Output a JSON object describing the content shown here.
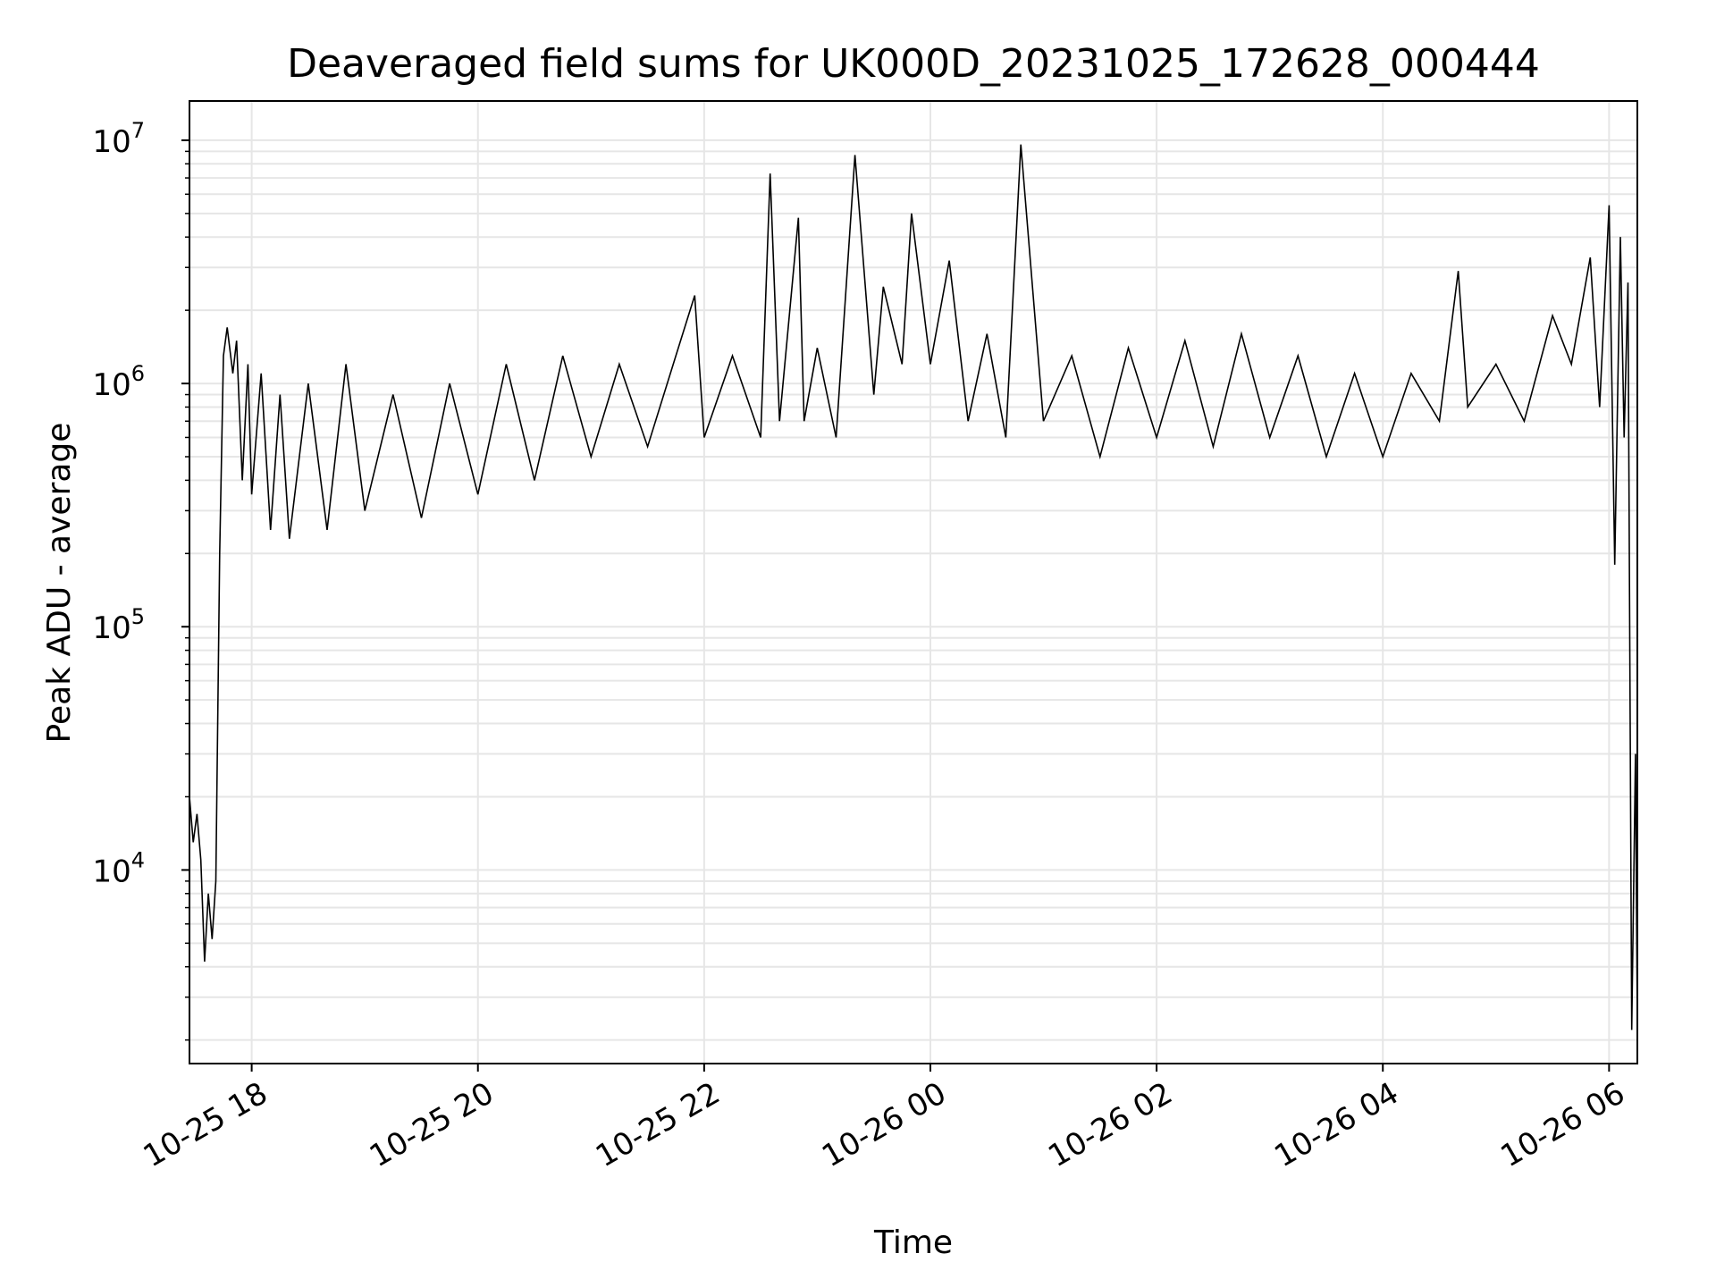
{
  "chart_data": {
    "type": "line",
    "title": "Deaveraged field sums for UK000D_20231025_172628_000444",
    "xlabel": "Time",
    "ylabel": "Peak ADU - average",
    "yscale": "log",
    "xlim": [
      "2023-10-25 17:27",
      "2023-10-26 06:15"
    ],
    "ylim": [
      1600,
      14500000
    ],
    "grid": true,
    "x_ticks": [
      {
        "label": "10-25 18",
        "value": "2023-10-25 18:00"
      },
      {
        "label": "10-25 20",
        "value": "2023-10-25 20:00"
      },
      {
        "label": "10-25 22",
        "value": "2023-10-25 22:00"
      },
      {
        "label": "10-26 00",
        "value": "2023-10-26 00:00"
      },
      {
        "label": "10-26 02",
        "value": "2023-10-26 02:00"
      },
      {
        "label": "10-26 04",
        "value": "2023-10-26 04:00"
      },
      {
        "label": "10-26 06",
        "value": "2023-10-26 06:00"
      }
    ],
    "y_ticks": [
      {
        "base": "10",
        "exp": "4",
        "value": 10000
      },
      {
        "base": "10",
        "exp": "5",
        "value": 100000
      },
      {
        "base": "10",
        "exp": "6",
        "value": 1000000
      },
      {
        "base": "10",
        "exp": "7",
        "value": 10000000
      }
    ],
    "line_color": "#000000",
    "grid_color": "#e6e6e6",
    "series": [
      {
        "x": [
          "2023-10-25 17:27",
          "2023-10-25 17:29",
          "2023-10-25 17:31",
          "2023-10-25 17:33",
          "2023-10-25 17:35",
          "2023-10-25 17:37",
          "2023-10-25 17:39",
          "2023-10-25 17:41",
          "2023-10-25 17:43",
          "2023-10-25 17:45",
          "2023-10-25 17:47",
          "2023-10-25 17:50",
          "2023-10-25 17:52",
          "2023-10-25 17:55",
          "2023-10-25 17:58",
          "2023-10-25 18:00",
          "2023-10-25 18:05",
          "2023-10-25 18:10",
          "2023-10-25 18:15",
          "2023-10-25 18:20",
          "2023-10-25 18:30",
          "2023-10-25 18:40",
          "2023-10-25 18:50",
          "2023-10-25 19:00",
          "2023-10-25 19:15",
          "2023-10-25 19:30",
          "2023-10-25 19:45",
          "2023-10-25 20:00",
          "2023-10-25 20:15",
          "2023-10-25 20:30",
          "2023-10-25 20:45",
          "2023-10-25 21:00",
          "2023-10-25 21:15",
          "2023-10-25 21:30",
          "2023-10-25 21:45",
          "2023-10-25 21:55",
          "2023-10-25 22:00",
          "2023-10-25 22:15",
          "2023-10-25 22:30",
          "2023-10-25 22:35",
          "2023-10-25 22:40",
          "2023-10-25 22:50",
          "2023-10-25 22:53",
          "2023-10-25 23:00",
          "2023-10-25 23:10",
          "2023-10-25 23:20",
          "2023-10-25 23:30",
          "2023-10-25 23:35",
          "2023-10-25 23:45",
          "2023-10-25 23:50",
          "2023-10-26 00:00",
          "2023-10-26 00:10",
          "2023-10-26 00:20",
          "2023-10-26 00:30",
          "2023-10-26 00:40",
          "2023-10-26 00:48",
          "2023-10-26 01:00",
          "2023-10-26 01:15",
          "2023-10-26 01:30",
          "2023-10-26 01:45",
          "2023-10-26 02:00",
          "2023-10-26 02:15",
          "2023-10-26 02:30",
          "2023-10-26 02:45",
          "2023-10-26 03:00",
          "2023-10-26 03:15",
          "2023-10-26 03:30",
          "2023-10-26 03:45",
          "2023-10-26 04:00",
          "2023-10-26 04:15",
          "2023-10-26 04:30",
          "2023-10-26 04:40",
          "2023-10-26 04:45",
          "2023-10-26 05:00",
          "2023-10-26 05:15",
          "2023-10-26 05:30",
          "2023-10-26 05:40",
          "2023-10-26 05:50",
          "2023-10-26 05:55",
          "2023-10-26 06:00",
          "2023-10-26 06:03",
          "2023-10-26 06:06",
          "2023-10-26 06:08",
          "2023-10-26 06:10",
          "2023-10-26 06:12",
          "2023-10-26 06:14",
          "2023-10-26 06:15"
        ],
        "y": [
          20000,
          13000,
          17000,
          11000,
          4200,
          8000,
          5200,
          9000,
          200000,
          1300000,
          1700000,
          1100000,
          1500000,
          400000,
          1200000,
          350000,
          1100000,
          250000,
          900000,
          230000,
          1000000,
          250000,
          1200000,
          300000,
          900000,
          280000,
          1000000,
          350000,
          1200000,
          400000,
          1300000,
          500000,
          1200000,
          550000,
          1300000,
          2300000,
          600000,
          1300000,
          600000,
          7300000,
          700000,
          4800000,
          700000,
          1400000,
          600000,
          8700000,
          900000,
          2500000,
          1200000,
          5000000,
          1200000,
          3200000,
          700000,
          1600000,
          600000,
          9600000,
          700000,
          1300000,
          500000,
          1400000,
          600000,
          1500000,
          550000,
          1600000,
          600000,
          1300000,
          500000,
          1100000,
          500000,
          1100000,
          700000,
          2900000,
          800000,
          1200000,
          700000,
          1900000,
          1200000,
          3300000,
          800000,
          5400000,
          180000,
          4000000,
          600000,
          2600000,
          2200,
          30000,
          2300
        ]
      }
    ]
  }
}
